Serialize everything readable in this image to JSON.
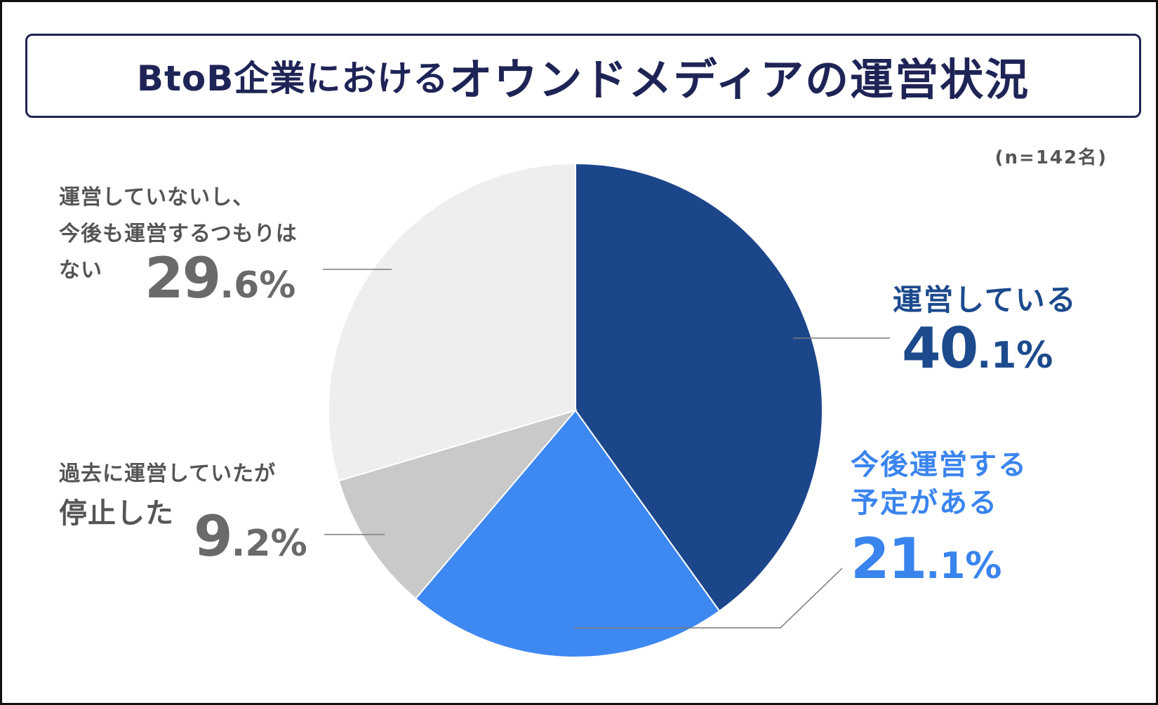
{
  "title_part1": "BtoB企業における",
  "title_part2": "オウンドメディアの運営状況",
  "sample_note": "(n=142名)",
  "chart_data": {
    "type": "pie",
    "title": "BtoB企業におけるオウンドメディアの運営状況",
    "slices": [
      {
        "label_lines": [
          "運営している"
        ],
        "pct_int": "40",
        "pct_dec": ".1%",
        "value": 40.1,
        "color": "#1c468a"
      },
      {
        "label_lines": [
          "今後運営する",
          "予定がある"
        ],
        "pct_int": "21",
        "pct_dec": ".1%",
        "value": 21.1,
        "color": "#3e88f2"
      },
      {
        "label_lines": [
          "過去に運営していたが",
          "停止した"
        ],
        "pct_int": "9",
        "pct_dec": ".2%",
        "value": 9.2,
        "color": "#c9c9c9"
      },
      {
        "label_lines": [
          "運営していないし、",
          "今後も運営するつもりは",
          "ない"
        ],
        "pct_int": "29",
        "pct_dec": ".6%",
        "value": 29.6,
        "color": "#eeeeee"
      }
    ]
  }
}
